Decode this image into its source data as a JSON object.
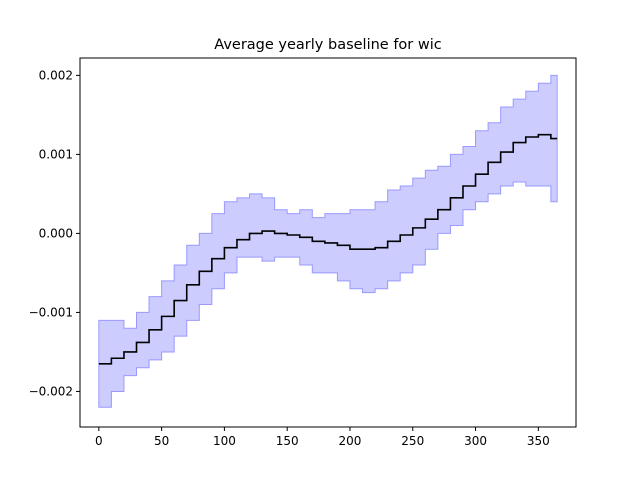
{
  "chart_data": {
    "type": "line",
    "title": "Average yearly baseline for wic",
    "xlabel": "",
    "ylabel": "",
    "xlim": [
      -15,
      380
    ],
    "ylim": [
      -0.00245,
      0.00222
    ],
    "xticks": [
      0,
      50,
      100,
      150,
      200,
      250,
      300,
      350
    ],
    "xtick_labels": [
      "0",
      "50",
      "100",
      "150",
      "200",
      "250",
      "300",
      "350"
    ],
    "yticks": [
      -0.002,
      -0.001,
      0.0,
      0.001,
      0.002
    ],
    "ytick_labels": [
      "−0.002",
      "−0.001",
      "0.000",
      "0.001",
      "0.002"
    ],
    "grid": false,
    "colors": {
      "mean_line": "#000000",
      "band_fill": "#ccccff",
      "band_edge": "#9999ff"
    },
    "series": [
      {
        "kind": "line",
        "x": [
          0,
          10,
          20,
          30,
          40,
          50,
          60,
          70,
          80,
          90,
          100,
          110,
          120,
          130,
          140,
          150,
          160,
          170,
          180,
          190,
          200,
          210,
          220,
          230,
          240,
          250,
          260,
          270,
          280,
          290,
          300,
          310,
          320,
          330,
          340,
          350,
          360,
          365
        ],
        "y": [
          -0.00165,
          -0.00158,
          -0.0015,
          -0.00138,
          -0.00122,
          -0.00105,
          -0.00085,
          -0.00065,
          -0.00048,
          -0.00032,
          -0.00018,
          -8e-05,
          0.0,
          3e-05,
          0.0,
          -2e-05,
          -5e-05,
          -0.0001,
          -0.00012,
          -0.00015,
          -0.0002,
          -0.0002,
          -0.00018,
          -0.0001,
          -2e-05,
          7e-05,
          0.00018,
          0.0003,
          0.00045,
          0.0006,
          0.00075,
          0.0009,
          0.00103,
          0.00115,
          0.00122,
          0.00125,
          0.0012,
          0.0012
        ]
      },
      {
        "kind": "band",
        "x": [
          0,
          10,
          20,
          30,
          40,
          50,
          60,
          70,
          80,
          90,
          100,
          110,
          120,
          130,
          140,
          150,
          160,
          170,
          180,
          190,
          200,
          210,
          220,
          230,
          240,
          250,
          260,
          270,
          280,
          290,
          300,
          310,
          320,
          330,
          340,
          350,
          360,
          365
        ],
        "upper": [
          -0.0011,
          -0.0011,
          -0.0012,
          -0.001,
          -0.0008,
          -0.0006,
          -0.0004,
          -0.00015,
          0.0,
          0.00025,
          0.0004,
          0.00045,
          0.0005,
          0.00045,
          0.0003,
          0.00025,
          0.0003,
          0.0002,
          0.00025,
          0.00025,
          0.0003,
          0.0003,
          0.0004,
          0.00055,
          0.0006,
          0.0007,
          0.0008,
          0.00085,
          0.001,
          0.0011,
          0.0013,
          0.0014,
          0.0016,
          0.0017,
          0.0018,
          0.0019,
          0.002,
          0.002
        ],
        "lower": [
          -0.0022,
          -0.002,
          -0.0018,
          -0.0017,
          -0.0016,
          -0.0015,
          -0.0013,
          -0.0011,
          -0.0009,
          -0.0007,
          -0.0005,
          -0.0003,
          -0.0003,
          -0.00035,
          -0.0003,
          -0.0003,
          -0.0004,
          -0.0005,
          -0.0005,
          -0.0006,
          -0.0007,
          -0.00075,
          -0.0007,
          -0.0006,
          -0.0005,
          -0.0004,
          -0.0002,
          0.0,
          0.0001,
          0.0003,
          0.0004,
          0.0005,
          0.0006,
          0.00065,
          0.0006,
          0.0006,
          0.0004,
          0.0004
        ]
      }
    ]
  }
}
